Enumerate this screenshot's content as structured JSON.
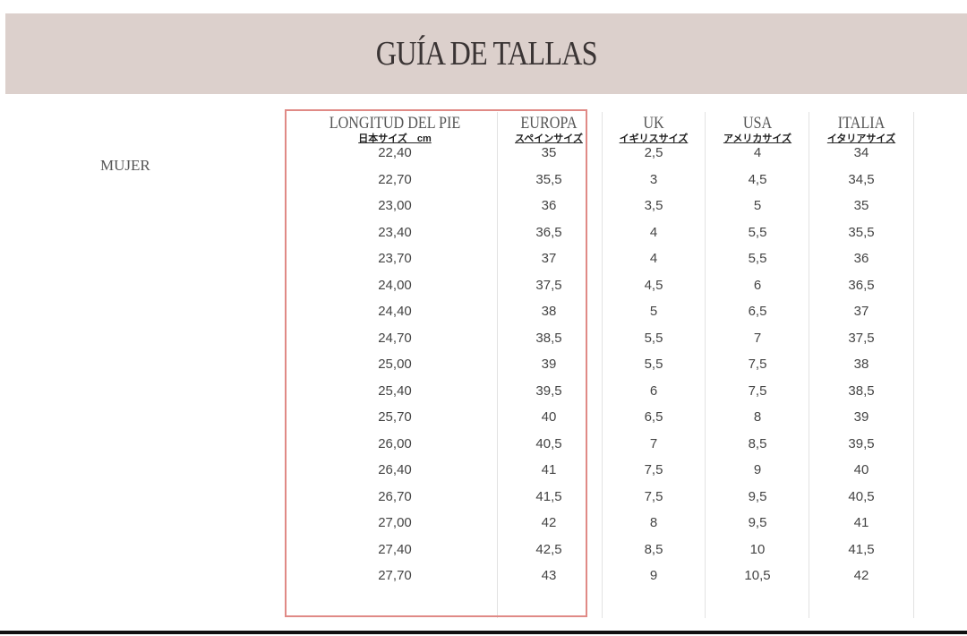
{
  "title": "GUÍA DE TALLAS",
  "section": "MUJER",
  "colors": {
    "banner": "#dcd0cc",
    "highlight_box": "#e08a86"
  },
  "columns": [
    {
      "header": "LONGITUD DEL PIE",
      "subheader": "日本サイズ　cm",
      "values": [
        "22,40",
        "22,70",
        "23,00",
        "23,40",
        "23,70",
        "24,00",
        "24,40",
        "24,70",
        "25,00",
        "25,40",
        "25,70",
        "26,00",
        "26,40",
        "26,70",
        "27,00",
        "27,40",
        "27,70"
      ]
    },
    {
      "header": "EUROPA",
      "subheader": "スペインサイズ",
      "values": [
        "35",
        "35,5",
        "36",
        "36,5",
        "37",
        "37,5",
        "38",
        "38,5",
        "39",
        "39,5",
        "40",
        "40,5",
        "41",
        "41,5",
        "42",
        "42,5",
        "43"
      ]
    },
    {
      "header": "UK",
      "subheader": "イギリスサイズ",
      "values": [
        "2,5",
        "3",
        "3,5",
        "4",
        "4",
        "4,5",
        "5",
        "5,5",
        "5,5",
        "6",
        "6,5",
        "7",
        "7,5",
        "7,5",
        "8",
        "8,5",
        "9"
      ]
    },
    {
      "header": "USA",
      "subheader": "アメリカサイズ",
      "values": [
        "4",
        "4,5",
        "5",
        "5,5",
        "5,5",
        "6",
        "6,5",
        "7",
        "7,5",
        "7,5",
        "8",
        "8,5",
        "9",
        "9,5",
        "9,5",
        "10",
        "10,5"
      ]
    },
    {
      "header": "ITALIA",
      "subheader": "イタリアサイズ",
      "values": [
        "34",
        "34,5",
        "35",
        "35,5",
        "36",
        "36,5",
        "37",
        "37,5",
        "38",
        "38,5",
        "39",
        "39,5",
        "40",
        "40,5",
        "41",
        "41,5",
        "42"
      ]
    }
  ]
}
